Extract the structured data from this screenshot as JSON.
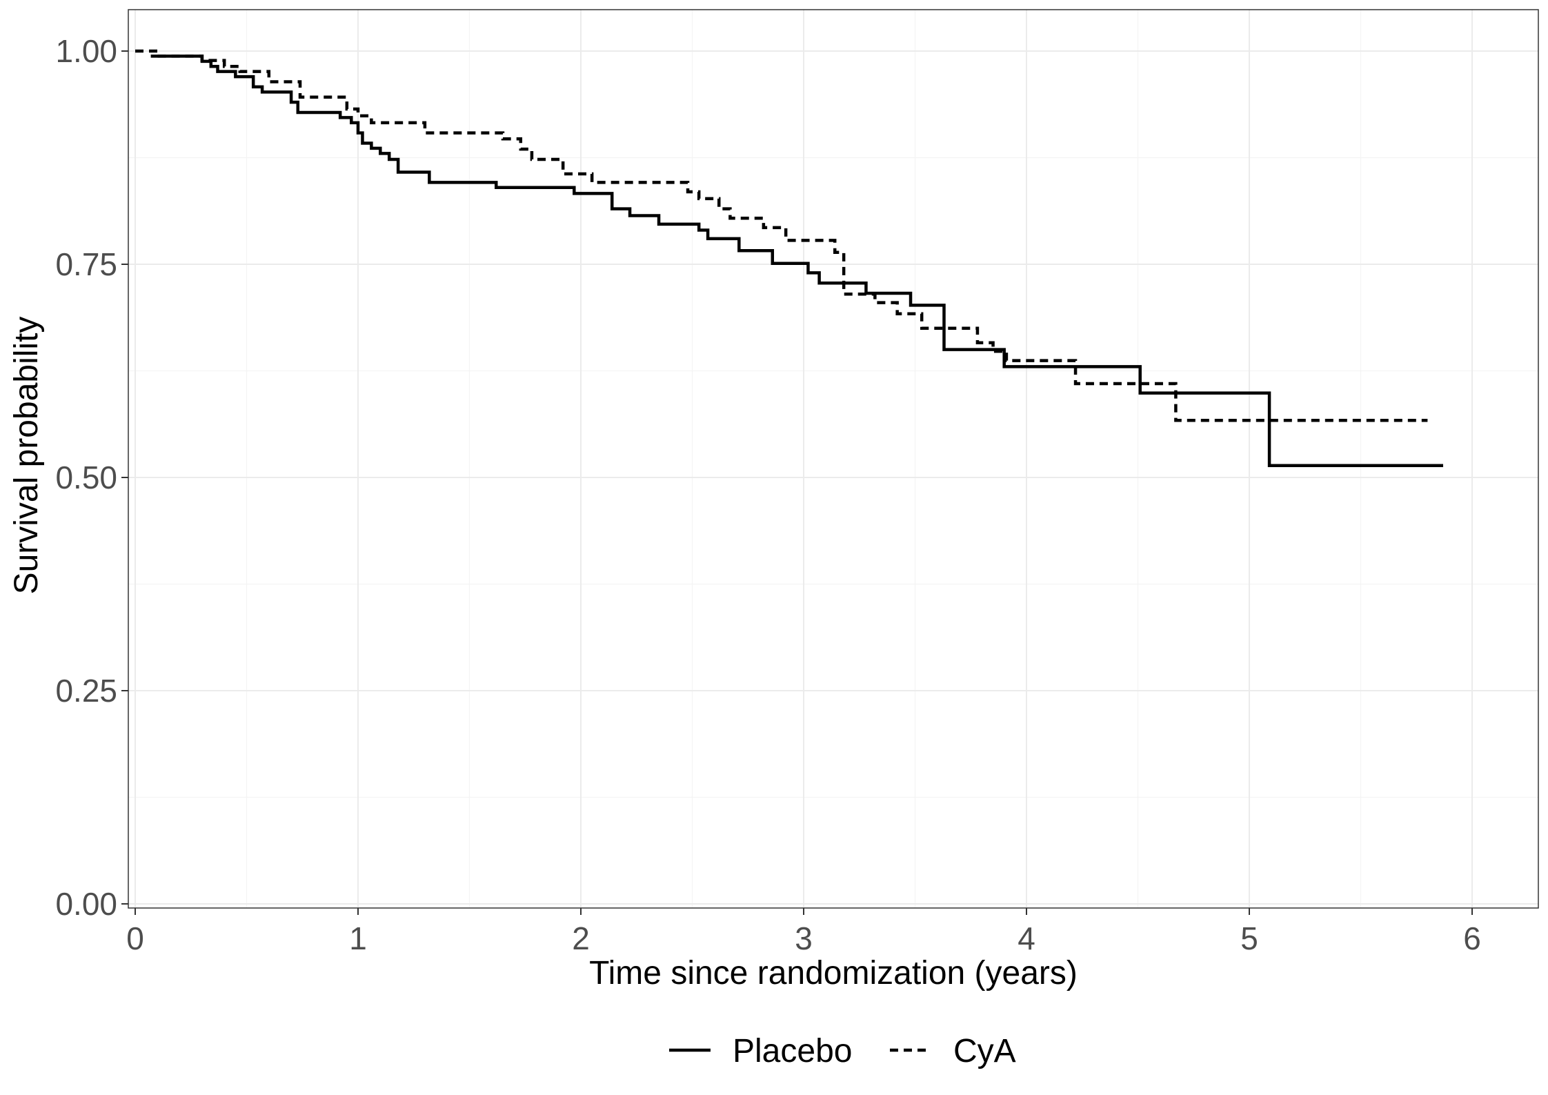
{
  "chart_data": {
    "type": "line",
    "title": "",
    "xlabel": "Time since randomization (years)",
    "ylabel": "Survival probability",
    "xlim": [
      0,
      6.2
    ],
    "ylim": [
      0,
      1.04
    ],
    "x_ticks": [
      0,
      1,
      2,
      3,
      4,
      5,
      6
    ],
    "x_tick_labels": [
      "0",
      "1",
      "2",
      "3",
      "4",
      "5",
      "6"
    ],
    "y_ticks": [
      0,
      0.25,
      0.5,
      0.75,
      1.0
    ],
    "y_tick_labels": [
      "0.00",
      "0.25",
      "0.50",
      "0.75",
      "1.00"
    ],
    "grid": true,
    "legend_position": "bottom",
    "series": [
      {
        "name": "Placebo",
        "line_style": "solid",
        "color": "#000000",
        "x": [
          0.07,
          0.27,
          0.3,
          0.34,
          0.37,
          0.45,
          0.53,
          0.57,
          0.7,
          0.73,
          0.92,
          0.97,
          1.0,
          1.02,
          1.06,
          1.1,
          1.14,
          1.18,
          1.32,
          1.62,
          1.97,
          2.14,
          2.22,
          2.35,
          2.53,
          2.57,
          2.71,
          2.86,
          3.02,
          3.07,
          3.28,
          3.48,
          3.63,
          3.9,
          4.51,
          5.09,
          5.87
        ],
        "y": [
          0.994,
          0.994,
          0.988,
          0.982,
          0.976,
          0.97,
          0.958,
          0.952,
          0.94,
          0.928,
          0.922,
          0.916,
          0.904,
          0.892,
          0.886,
          0.88,
          0.873,
          0.858,
          0.846,
          0.84,
          0.833,
          0.815,
          0.807,
          0.797,
          0.79,
          0.78,
          0.766,
          0.751,
          0.74,
          0.728,
          0.716,
          0.702,
          0.65,
          0.63,
          0.599,
          0.514,
          0.514
        ]
      },
      {
        "name": "CyA",
        "line_style": "dashed",
        "color": "#000000",
        "x": [
          0.0,
          0.1,
          0.3,
          0.4,
          0.47,
          0.6,
          0.74,
          0.95,
          1.0,
          1.06,
          1.3,
          1.65,
          1.73,
          1.78,
          1.92,
          2.05,
          2.48,
          2.53,
          2.62,
          2.67,
          2.82,
          2.92,
          3.14,
          3.18,
          3.32,
          3.42,
          3.53,
          3.78,
          3.85,
          3.91,
          4.22,
          4.65,
          4.67,
          5.8
        ],
        "y": [
          1.0,
          0.994,
          0.989,
          0.982,
          0.976,
          0.964,
          0.946,
          0.932,
          0.924,
          0.916,
          0.904,
          0.897,
          0.885,
          0.873,
          0.856,
          0.846,
          0.835,
          0.827,
          0.815,
          0.804,
          0.793,
          0.778,
          0.764,
          0.715,
          0.705,
          0.692,
          0.675,
          0.658,
          0.648,
          0.637,
          0.61,
          0.61,
          0.567,
          0.567
        ]
      }
    ]
  }
}
